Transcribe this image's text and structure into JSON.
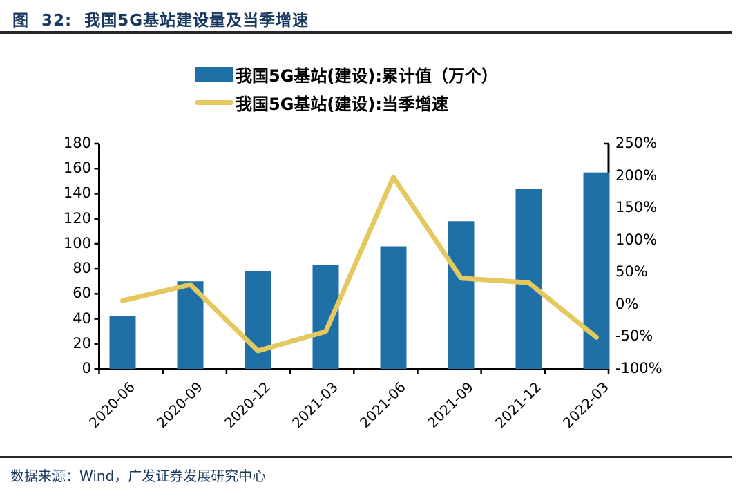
{
  "figure": {
    "title": "图  32:  我国5G基站建设量及当季增速",
    "source": "数据来源：Wind，广发证券发展研究中心"
  },
  "colors": {
    "bar": "#2070A8",
    "line": "#E5C95F",
    "title_navy": "#17375E",
    "rule": "#26262B",
    "axis": "#000000"
  },
  "chart_data": {
    "type": "bar",
    "subtype": "bar+line dual-axis combo",
    "title": "我国5G基站建设量及当季增速",
    "categories": [
      "2020-06",
      "2020-09",
      "2020-12",
      "2021-03",
      "2021-06",
      "2021-09",
      "2021-12",
      "2022-03"
    ],
    "series": [
      {
        "name": "我国5G基站(建设):累计值（万个）",
        "type": "bar",
        "axis": "left",
        "values": [
          42,
          70,
          78,
          83,
          98,
          118,
          144,
          157
        ]
      },
      {
        "name": "我国5G基站(建设):当季增速",
        "type": "line",
        "axis": "right",
        "values_pct": [
          6,
          31,
          -72,
          -42,
          198,
          41,
          34,
          -51
        ]
      }
    ],
    "left_axis": {
      "min": 0,
      "max": 180,
      "step": 20,
      "tick_labels": [
        "180",
        "160",
        "140",
        "120",
        "100",
        "80",
        "60",
        "40",
        "20",
        "0"
      ]
    },
    "right_axis": {
      "min": -100,
      "max": 250,
      "step": 50,
      "tick_labels": [
        "250%",
        "200%",
        "150%",
        "100%",
        "50%",
        "0%",
        "-50%",
        "-100%"
      ]
    },
    "legend_position": "top-center",
    "grid": false
  }
}
